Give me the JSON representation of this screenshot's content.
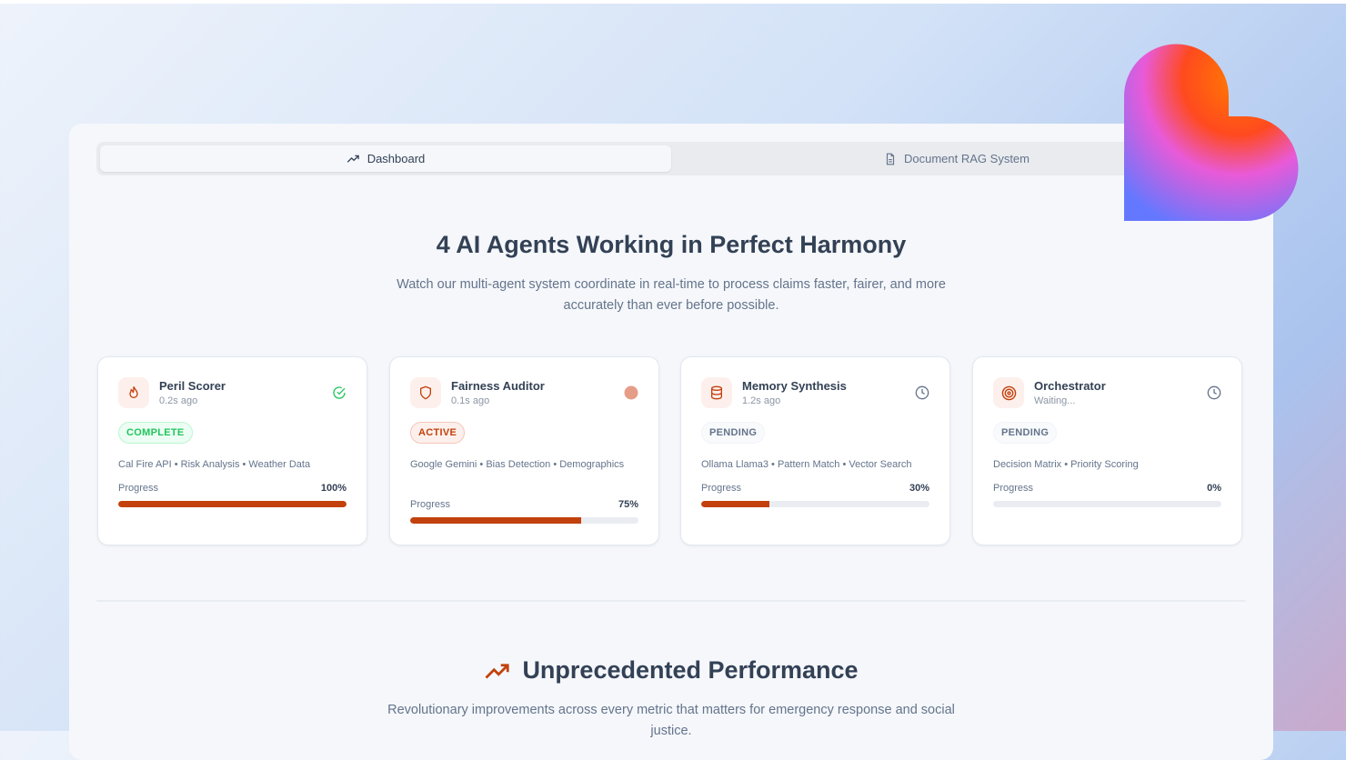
{
  "tabs": [
    {
      "label": "Dashboard",
      "icon": "trending-up-icon",
      "active": true
    },
    {
      "label": "Document RAG System",
      "icon": "file-text-icon",
      "active": false
    }
  ],
  "hero": {
    "title": "4 AI Agents Working in Perfect Harmony",
    "subtitle": "Watch our multi-agent system coordinate in real-time to process claims faster, fairer, and more accurately than ever before possible."
  },
  "agents": [
    {
      "name": "Peril Scorer",
      "time": "0.2s ago",
      "icon": "flame-icon",
      "status": "COMPLETE",
      "status_icon": "check-circle-icon",
      "capabilities": "Cal Fire API • Risk Analysis • Weather Data",
      "progress_label": "Progress",
      "progress": 100,
      "progress_text": "100%"
    },
    {
      "name": "Fairness Auditor",
      "time": "0.1s ago",
      "icon": "shield-icon",
      "status": "ACTIVE",
      "status_icon": "pulse-dot-icon",
      "capabilities": "Google Gemini • Bias Detection • Demographics",
      "progress_label": "Progress",
      "progress": 75,
      "progress_text": "75%"
    },
    {
      "name": "Memory Synthesis",
      "time": "1.2s ago",
      "icon": "database-icon",
      "status": "PENDING",
      "status_icon": "clock-icon",
      "capabilities": "Ollama Llama3 • Pattern Match • Vector Search",
      "progress_label": "Progress",
      "progress": 30,
      "progress_text": "30%"
    },
    {
      "name": "Orchestrator",
      "time": "Waiting...",
      "icon": "target-icon",
      "status": "PENDING",
      "status_icon": "clock-icon",
      "capabilities": "Decision Matrix • Priority Scoring",
      "progress_label": "Progress",
      "progress": 0,
      "progress_text": "0%"
    }
  ],
  "performance": {
    "title": "Unprecedented Performance",
    "subtitle": "Revolutionary improvements across every metric that matters for emergency response and social justice."
  },
  "colors": {
    "accent": "#c2410c",
    "complete": "#22c55e",
    "text": "#334155",
    "muted": "#64748b"
  }
}
